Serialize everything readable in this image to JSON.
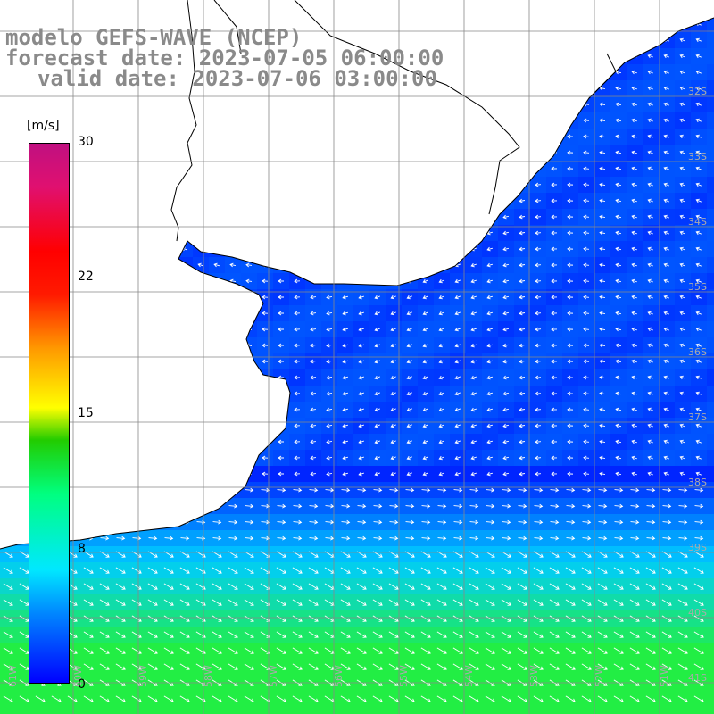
{
  "title": {
    "line1": "modelo GEFS-WAVE (NCEP)",
    "line2": "forecast date: 2023-07-05 06:00:00",
    "line3": "valid date: 2023-07-06 03:00:00"
  },
  "colorbar": {
    "unit": "[m/s]",
    "ticks": [
      "30",
      "22",
      "15",
      "8",
      "0"
    ],
    "range": [
      0,
      30
    ],
    "colors": [
      "#0000ff",
      "#00e8ff",
      "#22cc00",
      "#ffff00",
      "#ff0000",
      "#c01080"
    ]
  },
  "grid": {
    "lat_labels": [
      "32S",
      "33S",
      "34S",
      "35S",
      "36S",
      "37S",
      "38S",
      "39S",
      "40S",
      "41S"
    ],
    "lon_labels": [
      "61W",
      "60W",
      "59W",
      "58W",
      "57W",
      "56W",
      "55W",
      "54W",
      "53W",
      "52W",
      "51W"
    ]
  },
  "colors": {
    "land": "#ffffff",
    "coast": "#000000",
    "grid": "#888888",
    "arrow": "#ffffff",
    "ocean_calm": "#0022ff",
    "ocean_mid": "#00ccff",
    "ocean_strong": "#22ee44"
  }
}
